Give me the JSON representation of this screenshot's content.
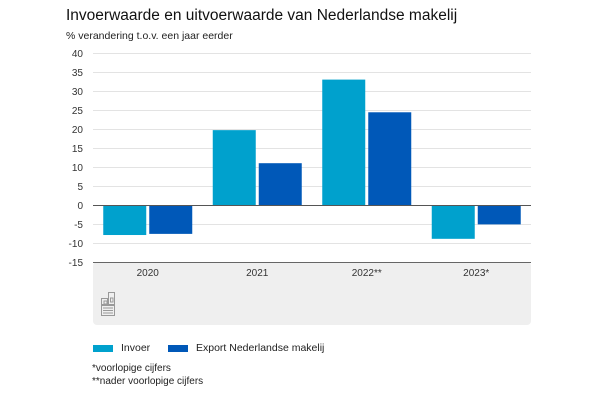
{
  "chart_data": {
    "type": "bar",
    "title": "Invoerwaarde en uitvoerwaarde van Nederlandse makelij",
    "subtitle": "% verandering t.o.v. een jaar eerder",
    "xlabel": "",
    "ylabel": "% verandering t.o.v. een jaar eerder",
    "categories": [
      "2020",
      "2021",
      "2022**",
      "2023*"
    ],
    "series": [
      {
        "name": "Invoer",
        "color": "#00a1cd",
        "values": [
          -7.9,
          19.7,
          33.0,
          -8.9
        ]
      },
      {
        "name": "Export Nederlandse makelij",
        "color": "#0058b8",
        "values": [
          -7.6,
          11.0,
          24.4,
          -5.1
        ]
      }
    ],
    "ylim": [
      -15,
      40
    ],
    "yticks": [
      40,
      35,
      30,
      25,
      20,
      15,
      10,
      5,
      0,
      -5,
      -10,
      -15
    ],
    "ytick_labels": [
      "40",
      "35",
      "30",
      "25",
      "20",
      "15",
      "10",
      "5",
      "0",
      "-5",
      "-10",
      "-15"
    ],
    "grid": true,
    "legend_position": "bottom-left"
  },
  "legend": {
    "items": [
      {
        "label": "Invoer",
        "color": "#00a1cd"
      },
      {
        "label": "Export Nederlandse makelij",
        "color": "#0058b8"
      }
    ]
  },
  "footnotes": [
    "*voorlopige cijfers",
    "**nader voorlopige cijfers"
  ],
  "logo": {
    "name": "cbs-logo",
    "text": "cbs"
  }
}
